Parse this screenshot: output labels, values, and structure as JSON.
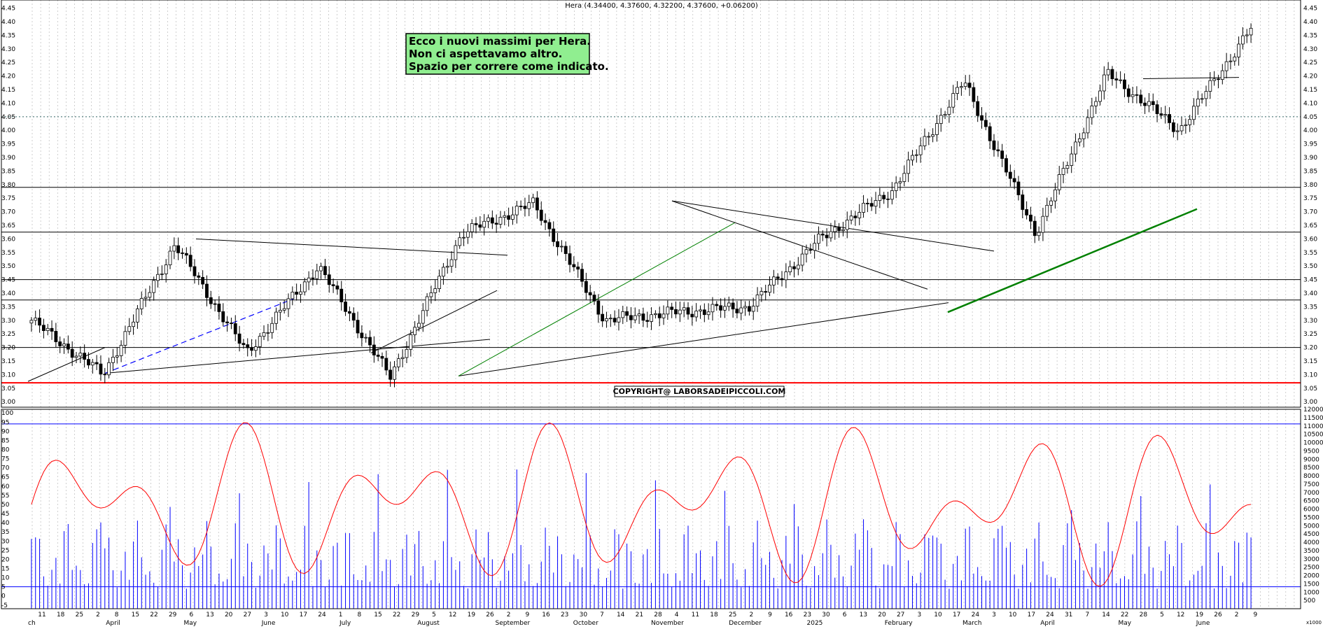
{
  "header": {
    "title": "Hera (4.34400, 4.37600, 4.32200, 4.37600, +0.06200)"
  },
  "annotation": {
    "lines": [
      "Ecco i nuovi massimi per Hera.",
      "Non ci aspettavamo altro.",
      "Spazio per correre come indicato."
    ]
  },
  "copyright": "COPYRIGHT@ LABORSADEIPICCOLI.COM",
  "volume_scale_label": "x1000",
  "colors": {
    "background": "#ffffff",
    "grid": "#b0b0b0",
    "candle": "#000000",
    "support_red": "#ff0000",
    "uptrend_green": "#008000",
    "dashed_blue": "#0000ff",
    "stochastic": "#ff0000",
    "volume": "#0000ff",
    "annotation_bg": "#90ee90"
  },
  "chart_data": [
    {
      "type": "candlestick",
      "title": "Hera (4.34400, 4.37600, 4.32200, 4.37600, +0.06200)",
      "ylim": [
        2.98,
        4.48
      ],
      "y_ticks": [
        3.0,
        3.05,
        3.1,
        3.15,
        3.2,
        3.25,
        3.3,
        3.35,
        3.4,
        3.45,
        3.5,
        3.55,
        3.6,
        3.65,
        3.7,
        3.75,
        3.8,
        3.85,
        3.9,
        3.95,
        4.0,
        4.05,
        4.1,
        4.15,
        4.2,
        4.25,
        4.3,
        4.35,
        4.4,
        4.45
      ],
      "y_tick_labels": [
        "3.00",
        "3.05",
        "3.10",
        "3.15",
        "3.20",
        "3.25",
        "3.30",
        "3.35",
        "3.40",
        "3.45",
        "3.50",
        "3.55",
        "3.60",
        "3.65",
        "3.70",
        "3.75",
        "3.80",
        "3.85",
        "3.90",
        "3.95",
        "4.00",
        "4.05",
        "4.10",
        "4.15",
        "4.20",
        "4.25",
        "4.30",
        "4.35",
        "4.40",
        "4.45"
      ],
      "horizontal_levels": [
        3.07,
        3.2,
        3.375,
        3.45,
        3.625,
        3.79
      ],
      "dotted_level": 4.05,
      "key_points": [
        {
          "label": "start",
          "close": 3.3
        },
        {
          "label": "April low",
          "close": 3.1
        },
        {
          "label": "May high",
          "close": 3.58
        },
        {
          "label": "July low",
          "close": 3.18
        },
        {
          "label": "July high",
          "close": 3.5
        },
        {
          "label": "August low",
          "close": 3.09
        },
        {
          "label": "September high",
          "close": 3.62
        },
        {
          "label": "October high",
          "close": 3.73
        },
        {
          "label": "November low",
          "close": 3.3
        },
        {
          "label": "December low",
          "close": 3.33
        },
        {
          "label": "January 2025 low",
          "close": 3.35
        },
        {
          "label": "February",
          "close": 3.6
        },
        {
          "label": "March",
          "close": 3.78
        },
        {
          "label": "late March high",
          "close": 4.18
        },
        {
          "label": "April low",
          "close": 3.62
        },
        {
          "label": "May high",
          "close": 4.21
        },
        {
          "label": "May pullback",
          "close": 4.0
        },
        {
          "label": "last",
          "close": 4.376
        }
      ]
    },
    {
      "type": "line",
      "name": "Stochastic",
      "ylim": [
        -7,
        102
      ],
      "y_ticks": [
        -5,
        0,
        5,
        10,
        15,
        20,
        25,
        30,
        35,
        40,
        45,
        50,
        55,
        60,
        65,
        70,
        75,
        80,
        85,
        90,
        95,
        100
      ],
      "y_tick_labels": [
        "-5",
        "0",
        "5",
        "10",
        "15",
        "20",
        "25",
        "30",
        "35",
        "40",
        "45",
        "50",
        "55",
        "60",
        "65",
        "70",
        "75",
        "80",
        "85",
        "90",
        "95",
        "100"
      ],
      "overbought_line": 94,
      "oversold_line": 5
    },
    {
      "type": "bar",
      "name": "Volume",
      "unit": "x1000",
      "y_ticks": [
        500,
        1000,
        1500,
        2000,
        2500,
        3000,
        3500,
        4000,
        4500,
        5000,
        5500,
        6000,
        6500,
        7000,
        7500,
        8000,
        8500,
        9000,
        9500,
        10000,
        10500,
        11000,
        11500,
        12000
      ],
      "y_tick_labels": [
        "500",
        "1000",
        "1500",
        "2000",
        "2500",
        "3000",
        "3500",
        "4000",
        "4500",
        "5000",
        "5500",
        "6000",
        "6500",
        "7000",
        "7500",
        "8000",
        "8500",
        "9000",
        "9500",
        "10000",
        "10500",
        "11000",
        "11500",
        "12000"
      ]
    }
  ],
  "x_axis": {
    "day_ticks": [
      "11",
      "18",
      "25",
      "2",
      "8",
      "15",
      "22",
      "29",
      "6",
      "13",
      "20",
      "27",
      "3",
      "10",
      "17",
      "24",
      "1",
      "8",
      "15",
      "22",
      "29",
      "5",
      "12",
      "19",
      "26",
      "2",
      "9",
      "16",
      "23",
      "30",
      "7",
      "14",
      "21",
      "28",
      "4",
      "11",
      "18",
      "25",
      "2",
      "9",
      "16",
      "23",
      "30",
      "6",
      "13",
      "20",
      "27",
      "3",
      "10",
      "17",
      "24",
      "3",
      "10",
      "17",
      "24",
      "31",
      "7",
      "14",
      "22",
      "28",
      "5",
      "12",
      "19",
      "26",
      "2",
      "9"
    ],
    "months": [
      "ch",
      "April",
      "May",
      "June",
      "July",
      "August",
      "September",
      "October",
      "November",
      "December",
      "2025",
      "February",
      "March",
      "April",
      "May",
      "June"
    ]
  }
}
